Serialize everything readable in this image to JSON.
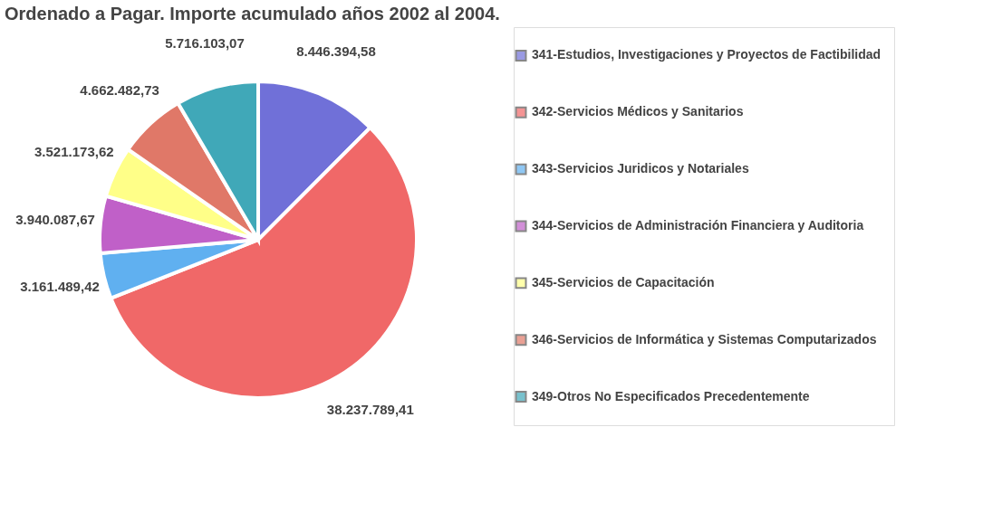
{
  "chart_data": {
    "type": "pie",
    "title": "Ordenado a Pagar. Importe acumulado años 2002 al 2004.",
    "categories": [
      "341-Estudios, Investigaciones y Proyectos de Factibilidad",
      "342-Servicios Médicos y Sanitarios",
      "343-Servicios Juridicos y Notariales",
      "344-Servicios de Administración Financiera y Auditoria",
      "345-Servicios de Capacitación",
      "346-Servicios de Informática y Sistemas Computarizados",
      "349-Otros No Especificados Precedentemente"
    ],
    "values": [
      8446394.58,
      38237789.41,
      3161489.42,
      3940087.67,
      3521173.62,
      4662482.73,
      5716103.07
    ],
    "value_labels": [
      "8.446.394,58",
      "38.237.789,41",
      "3.161.489,42",
      "3.940.087,67",
      "3.521.173,62",
      "4.662.482,73",
      "5.716.103,07"
    ],
    "colors": [
      "#7070d8",
      "#f06868",
      "#60b0f0",
      "#c060c8",
      "#ffff88",
      "#e07868",
      "#40a8b8"
    ],
    "legend": "right"
  }
}
